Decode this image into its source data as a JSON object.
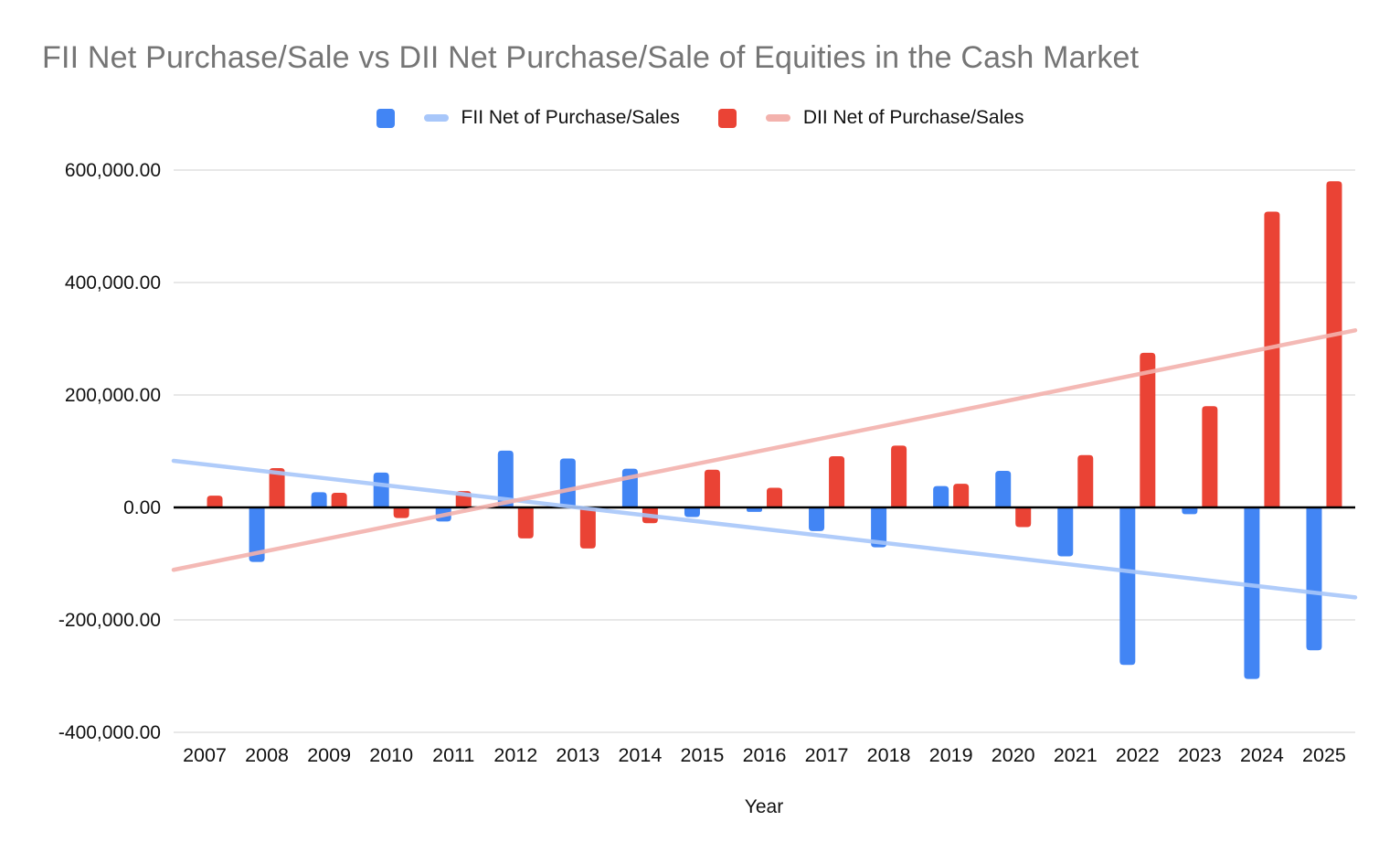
{
  "title": "FII Net Purchase/Sale vs DII Net Purchase/Sale of Equities in the Cash Market",
  "legend": [
    {
      "label": "FII Net of Purchase/Sales",
      "bar_color": "#4285F4",
      "trend_color": "#A8C7FA"
    },
    {
      "label": "DII Net of Purchase/Sales",
      "bar_color": "#EA4335",
      "trend_color": "#F3B2AD"
    }
  ],
  "chart_data": {
    "type": "bar",
    "title": "FII Net Purchase/Sale vs DII Net Purchase/Sale of Equities in the Cash Market",
    "xlabel": "Year",
    "ylabel": "",
    "ylim": [
      -400000,
      600000
    ],
    "ytick_step": 200000,
    "ytick_labels": [
      "600,000.00",
      "400,000.00",
      "200,000.00",
      "0.00",
      "-200,000.00",
      "-400,000.00"
    ],
    "grid": true,
    "legend_position": "top",
    "categories": [
      "2007",
      "2008",
      "2009",
      "2010",
      "2011",
      "2012",
      "2013",
      "2014",
      "2015",
      "2016",
      "2017",
      "2018",
      "2019",
      "2020",
      "2021",
      "2022",
      "2023",
      "2024",
      "2025"
    ],
    "series": [
      {
        "name": "FII Net of Purchase/Sales",
        "color": "#4285F4",
        "values": [
          0,
          -97000,
          27000,
          62000,
          -25000,
          101000,
          87000,
          69000,
          -17000,
          -8000,
          -42000,
          -71000,
          38000,
          65000,
          -87000,
          -280000,
          -12000,
          -305000,
          -254000
        ]
      },
      {
        "name": "DII Net of Purchase/Sales",
        "color": "#EA4335",
        "values": [
          21000,
          70000,
          26000,
          -19000,
          29000,
          -55000,
          -73000,
          -28000,
          67000,
          35000,
          91000,
          110000,
          42000,
          -35000,
          93000,
          275000,
          180000,
          526000,
          580000
        ]
      }
    ],
    "trendlines": [
      {
        "series": "FII Net of Purchase/Sales",
        "color": "#A8C7FA",
        "start_value": 83000,
        "end_value": -160000
      },
      {
        "series": "DII Net of Purchase/Sales",
        "color": "#F3B2AD",
        "start_value": -111000,
        "end_value": 315000
      }
    ]
  },
  "colors": {
    "grid_line": "#D9D9D9",
    "zero_line": "#000000",
    "axis_text": "#111111",
    "title_text": "#757575"
  }
}
